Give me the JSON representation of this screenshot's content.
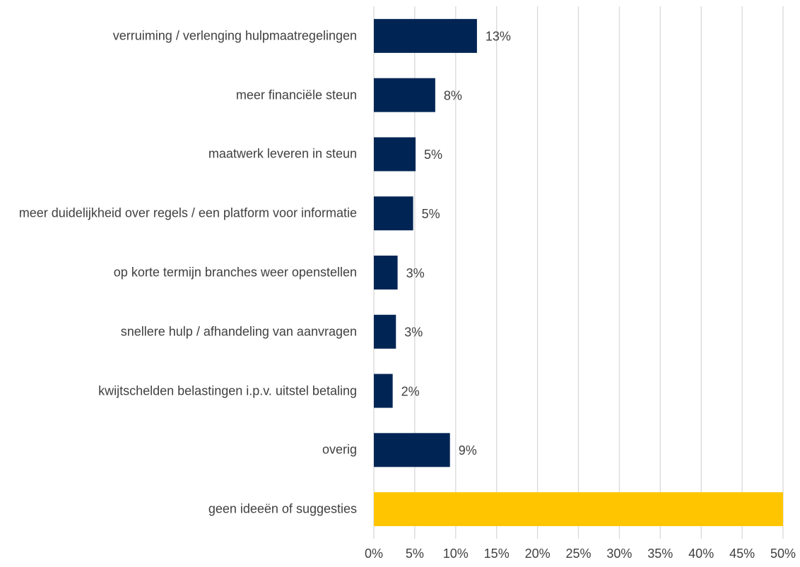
{
  "chart_data": {
    "type": "bar",
    "orientation": "horizontal",
    "categories": [
      "verruiming / verlenging hulpmaatregelingen",
      "meer financiële steun",
      "maatwerk leveren in steun",
      "meer duidelijkheid over regels / een platform voor informatie",
      "op korte termijn branches weer openstellen",
      "snellere hulp / afhandeling van aanvragen",
      "kwijtschelden belastingen i.p.v. uitstel betaling",
      "overig",
      "geen ideeën of suggesties"
    ],
    "values": [
      12.6,
      7.5,
      5.1,
      4.8,
      2.9,
      2.7,
      2.3,
      9.3,
      50
    ],
    "value_labels": [
      "13%",
      "8%",
      "5%",
      "5%",
      "3%",
      "3%",
      "2%",
      "9%",
      null
    ],
    "colors": [
      "#002554",
      "#002554",
      "#002554",
      "#002554",
      "#002554",
      "#002554",
      "#002554",
      "#002554",
      "#ffc600"
    ],
    "xlim": [
      0,
      50
    ],
    "xticks": [
      {
        "value": 0,
        "label": "0%"
      },
      {
        "value": 5,
        "label": "5%"
      },
      {
        "value": 10,
        "label": "10%"
      },
      {
        "value": 15,
        "label": "15%"
      },
      {
        "value": 20,
        "label": "20%"
      },
      {
        "value": 25,
        "label": "25%"
      },
      {
        "value": 30,
        "label": "30%"
      },
      {
        "value": 35,
        "label": "35%"
      },
      {
        "value": 40,
        "label": "40%"
      },
      {
        "value": 45,
        "label": "45%"
      },
      {
        "value": 50,
        "label": "50%"
      }
    ],
    "grid": true
  }
}
